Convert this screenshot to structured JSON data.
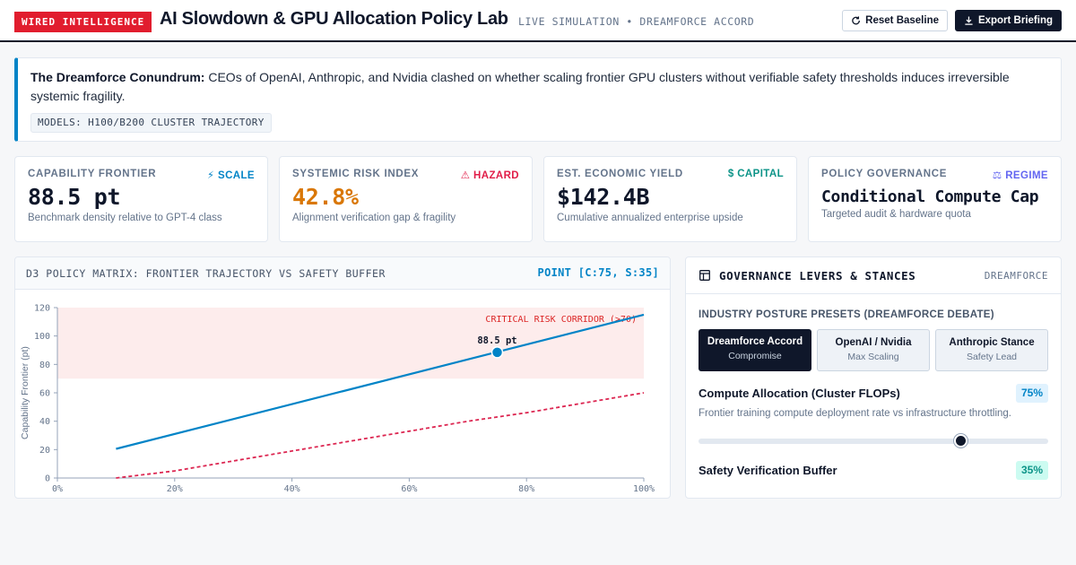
{
  "header": {
    "badge": "WIRED INTELLIGENCE",
    "title": "AI Slowdown & GPU Allocation Policy Lab",
    "subtitle": "LIVE SIMULATION • DREAMFORCE ACCORD",
    "reset_label": "Reset Baseline",
    "export_label": "Export Briefing"
  },
  "conundrum": {
    "lead": "The Dreamforce Conundrum:",
    "text": "CEOs of OpenAI, Anthropic, and Nvidia clashed on whether scaling frontier GPU clusters without verifiable safety thresholds induces irreversible systemic fragility.",
    "tag": "MODELS: H100/B200 CLUSTER TRAJECTORY"
  },
  "kpis": [
    {
      "label": "CAPABILITY FRONTIER",
      "tag": "⚡ SCALE",
      "tag_color": "#0284c7",
      "value": "88.5 pt",
      "value_color": "#0f172a",
      "desc": "Benchmark density relative to GPT-4 class"
    },
    {
      "label": "SYSTEMIC RISK INDEX",
      "tag": "⚠ HAZARD",
      "tag_color": "#e11d48",
      "value": "42.8%",
      "value_color": "#d97706",
      "desc": "Alignment verification gap & fragility"
    },
    {
      "label": "EST. ECONOMIC YIELD",
      "tag": "$ CAPITAL",
      "tag_color": "#0d9488",
      "value": "$142.4B",
      "value_color": "#0f172a",
      "desc": "Cumulative annualized enterprise upside"
    },
    {
      "label": "POLICY GOVERNANCE",
      "tag": "⚖ REGIME",
      "tag_color": "#6366f1",
      "value": "Conditional Compute Cap",
      "value_color": "#0f172a",
      "desc": "Targeted audit & hardware quota"
    }
  ],
  "chart_panel": {
    "title": "D3 POLICY MATRIX: FRONTIER TRAJECTORY VS SAFETY BUFFER",
    "point_readout": "POINT [C:75, S:35]"
  },
  "chart_data": {
    "type": "line",
    "ylabel": "Capability Frontier (pt)",
    "xlabel": "",
    "xlim": [
      0,
      100
    ],
    "ylim": [
      0,
      120
    ],
    "x_ticks": [
      "0%",
      "20%",
      "40%",
      "60%",
      "80%",
      "100%"
    ],
    "y_ticks": [
      0,
      20,
      40,
      60,
      80,
      100,
      120
    ],
    "band": {
      "label": "CRITICAL RISK CORRIDOR (>70)",
      "from": 70,
      "to": 120,
      "color": "#fdecec"
    },
    "series": [
      {
        "color": "#0284c7",
        "style": "solid",
        "x": [
          10,
          100
        ],
        "y": [
          20.5,
          115
        ]
      },
      {
        "color": "#dc2651",
        "style": "dashed",
        "x": [
          10,
          20,
          30,
          40,
          50,
          60,
          70,
          80,
          90,
          100
        ],
        "y": [
          0,
          5,
          12,
          19,
          26,
          33,
          40,
          46,
          53,
          60
        ]
      }
    ],
    "marker": {
      "x": 75,
      "y": 88.5,
      "label": "88.5 pt",
      "color": "#0284c7"
    }
  },
  "governance": {
    "title": "GOVERNANCE LEVERS & STANCES",
    "tag": "DREAMFORCE",
    "presets_label": "INDUSTRY POSTURE PRESETS (DREAMFORCE DEBATE)",
    "presets": [
      {
        "name": "Dreamforce Accord",
        "sub": "Compromise",
        "active": true
      },
      {
        "name": "OpenAI / Nvidia",
        "sub": "Max Scaling",
        "active": false
      },
      {
        "name": "Anthropic Stance",
        "sub": "Safety Lead",
        "active": false
      }
    ],
    "levers": [
      {
        "label": "Compute Allocation (Cluster FLOPs)",
        "value": "75%",
        "level": 0.75,
        "desc": "Frontier training compute deployment rate vs infrastructure throttling.",
        "badge_bg": "#e0f2fe",
        "badge_color": "#0284c7"
      },
      {
        "label": "Safety Verification Buffer",
        "value": "35%",
        "level": 0.35,
        "desc": "",
        "badge_bg": "#ccfbf1",
        "badge_color": "#0d9488"
      }
    ]
  }
}
